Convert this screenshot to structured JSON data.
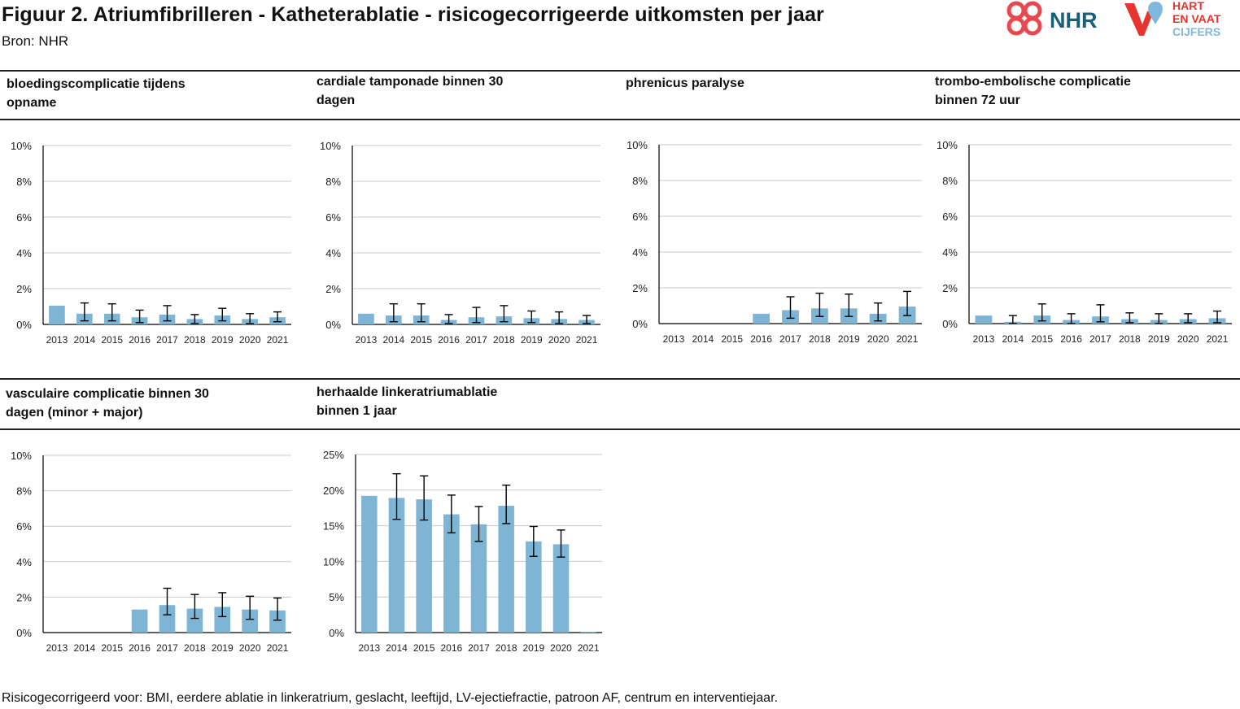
{
  "header": {
    "title": "Figuur 2. Atriumfibrilleren - Katheterablatie - risicogecorrigeerde uitkomsten per jaar",
    "source": "Bron: NHR"
  },
  "logos": {
    "nhr_text": "NHR",
    "hvc_line1": "HART",
    "hvc_line2": "EN VAAT",
    "hvc_line3": "CIJFERS"
  },
  "colors": {
    "bar": "#7fb5d4",
    "error_bar": "#000000",
    "grid": "#c8c8c8",
    "nhr_red": "#e8484f",
    "nhr_blue": "#1a5e78",
    "hvc_red": "#e5352e",
    "hvc_blue": "#7fb8dc"
  },
  "footnote": "Risicogecorrigeerd voor: BMI, eerdere ablatie in linkeratrium, geslacht, leeftijd, LV-ejectiefractie, patroon AF, centrum en interventiejaar.",
  "chart_data": [
    {
      "type": "bar",
      "title": "bloedingscomplicatie tijdens opname",
      "categories": [
        "2013",
        "2014",
        "2015",
        "2016",
        "2017",
        "2018",
        "2019",
        "2020",
        "2021"
      ],
      "values": [
        1.05,
        0.6,
        0.6,
        0.4,
        0.55,
        0.3,
        0.5,
        0.3,
        0.4
      ],
      "error_low": [
        null,
        0.2,
        0.2,
        0.1,
        0.2,
        0.05,
        0.2,
        0.05,
        0.15
      ],
      "error_high": [
        null,
        1.2,
        1.15,
        0.8,
        1.05,
        0.55,
        0.9,
        0.6,
        0.7
      ],
      "ylim": [
        0,
        10
      ],
      "yticks": [
        "0%",
        "2%",
        "4%",
        "6%",
        "8%",
        "10%"
      ],
      "grid": true
    },
    {
      "type": "bar",
      "title": "cardiale tamponade binnen 30 dagen",
      "categories": [
        "2013",
        "2014",
        "2015",
        "2016",
        "2017",
        "2018",
        "2019",
        "2020",
        "2021"
      ],
      "values": [
        0.6,
        0.5,
        0.5,
        0.25,
        0.4,
        0.45,
        0.35,
        0.3,
        0.25
      ],
      "error_low": [
        null,
        0.15,
        0.15,
        0.05,
        0.1,
        0.15,
        0.1,
        0.05,
        0.05
      ],
      "error_high": [
        null,
        1.15,
        1.15,
        0.55,
        0.95,
        1.05,
        0.75,
        0.7,
        0.5
      ],
      "ylim": [
        0,
        10
      ],
      "yticks": [
        "0%",
        "2%",
        "4%",
        "6%",
        "8%",
        "10%"
      ],
      "grid": true
    },
    {
      "type": "bar",
      "title": "phrenicus paralyse",
      "categories": [
        "2013",
        "2014",
        "2015",
        "2016",
        "2017",
        "2018",
        "2019",
        "2020",
        "2021"
      ],
      "values": [
        0,
        0,
        0,
        0.55,
        0.75,
        0.85,
        0.85,
        0.55,
        0.95
      ],
      "error_low": [
        null,
        null,
        null,
        null,
        0.3,
        0.4,
        0.4,
        0.15,
        0.45
      ],
      "error_high": [
        null,
        null,
        null,
        null,
        1.5,
        1.7,
        1.65,
        1.15,
        1.8
      ],
      "ylim": [
        0,
        10
      ],
      "yticks": [
        "0%",
        "2%",
        "4%",
        "6%",
        "8%",
        "10%"
      ],
      "grid": true
    },
    {
      "type": "bar",
      "title": "trombo-embolische complicatie binnen 72 uur",
      "categories": [
        "2013",
        "2014",
        "2015",
        "2016",
        "2017",
        "2018",
        "2019",
        "2020",
        "2021"
      ],
      "values": [
        0.45,
        0.1,
        0.45,
        0.2,
        0.4,
        0.25,
        0.2,
        0.25,
        0.3
      ],
      "error_low": [
        null,
        0.0,
        0.15,
        0.0,
        0.1,
        0.05,
        0.0,
        0.05,
        0.05
      ],
      "error_high": [
        null,
        0.45,
        1.1,
        0.55,
        1.05,
        0.6,
        0.55,
        0.55,
        0.7
      ],
      "ylim": [
        0,
        10
      ],
      "yticks": [
        "0%",
        "2%",
        "4%",
        "6%",
        "8%",
        "10%"
      ],
      "grid": true
    },
    {
      "type": "bar",
      "title": "vasculaire complicatie binnen 30 dagen (minor + major)",
      "categories": [
        "2013",
        "2014",
        "2015",
        "2016",
        "2017",
        "2018",
        "2019",
        "2020",
        "2021"
      ],
      "values": [
        0,
        0,
        0,
        1.3,
        1.55,
        1.35,
        1.45,
        1.3,
        1.25
      ],
      "error_low": [
        null,
        null,
        null,
        null,
        1.0,
        0.8,
        0.9,
        0.75,
        0.7
      ],
      "error_high": [
        null,
        null,
        null,
        null,
        2.5,
        2.15,
        2.25,
        2.05,
        1.95
      ],
      "ylim": [
        0,
        10
      ],
      "yticks": [
        "0%",
        "2%",
        "4%",
        "6%",
        "8%",
        "10%"
      ],
      "grid": true
    },
    {
      "type": "bar",
      "title": "herhaalde linkeratriumablatie binnen 1 jaar",
      "categories": [
        "2013",
        "2014",
        "2015",
        "2016",
        "2017",
        "2018",
        "2019",
        "2020",
        "2021"
      ],
      "values": [
        19.2,
        18.9,
        18.7,
        16.6,
        15.2,
        17.8,
        12.8,
        12.4,
        0.1
      ],
      "error_low": [
        null,
        15.9,
        15.8,
        14.0,
        12.8,
        15.3,
        10.7,
        10.6,
        null
      ],
      "error_high": [
        null,
        22.3,
        22.0,
        19.3,
        17.7,
        20.7,
        14.9,
        14.4,
        null
      ],
      "ylim": [
        0,
        25
      ],
      "yticks": [
        "0%",
        "5%",
        "10%",
        "15%",
        "20%",
        "25%"
      ],
      "grid": true
    }
  ]
}
